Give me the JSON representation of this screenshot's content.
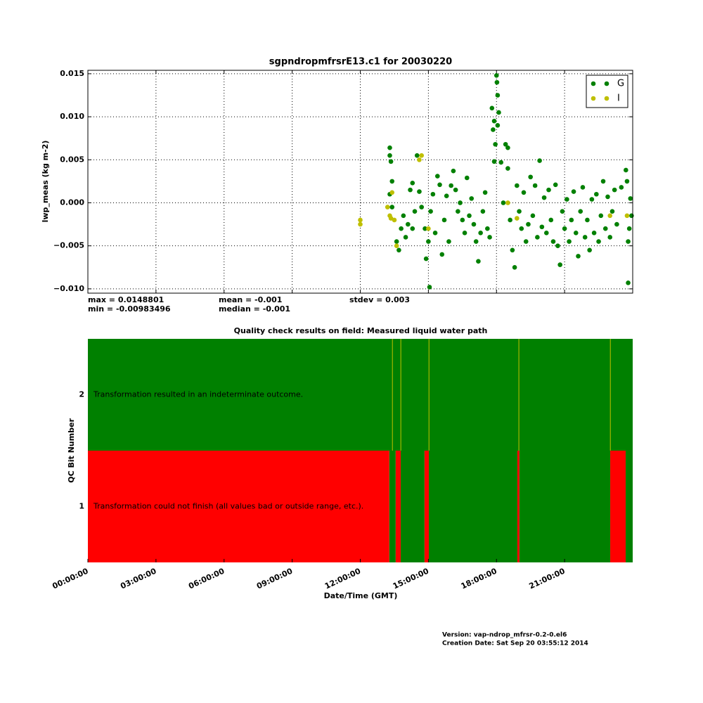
{
  "chart_data": [
    {
      "type": "scatter",
      "title": "sgpndropmfrsrE13.c1 for 20030220",
      "y_label": "lwp_meas (kg m-2)",
      "xlim": [
        0,
        24
      ],
      "xticks": [
        0,
        3,
        6,
        9,
        12,
        15,
        18,
        21
      ],
      "ylim": [
        -0.0105,
        0.0154
      ],
      "yticks": [
        {
          "value": -0.01,
          "label": "−0.010"
        },
        {
          "value": -0.005,
          "label": "−0.005"
        },
        {
          "value": 0,
          "label": "0.000"
        },
        {
          "value": 0.005,
          "label": "0.005"
        },
        {
          "value": 0.01,
          "label": "0.010"
        },
        {
          "value": 0.015,
          "label": "0.015"
        }
      ],
      "grid": true,
      "legend": "upper right",
      "series": [
        {
          "name": "G",
          "color": "#008000",
          "x": [
            13.3,
            13.3,
            13.35,
            13.4,
            13.3,
            13.4,
            13.6,
            13.7,
            13.8,
            13.9,
            14.0,
            14.1,
            14.2,
            14.3,
            14.3,
            14.4,
            14.5,
            14.6,
            14.7,
            14.85,
            14.9,
            15.0,
            15.05,
            15.1,
            15.2,
            15.3,
            15.4,
            15.5,
            15.6,
            15.7,
            15.8,
            15.9,
            16.0,
            16.1,
            16.2,
            16.3,
            16.4,
            16.5,
            16.6,
            16.7,
            16.8,
            16.9,
            17.0,
            17.1,
            17.2,
            17.3,
            17.4,
            17.5,
            17.6,
            17.7,
            17.8,
            17.85,
            17.9,
            17.95,
            18.0,
            18.02,
            18.05,
            18.1,
            18.05,
            17.9,
            18.2,
            18.3,
            18.4,
            18.5,
            18.5,
            18.6,
            18.7,
            18.8,
            18.9,
            19.0,
            19.1,
            19.2,
            19.3,
            19.4,
            19.5,
            19.6,
            19.7,
            19.8,
            19.9,
            20.0,
            20.1,
            20.2,
            20.3,
            20.4,
            20.5,
            20.6,
            20.7,
            20.8,
            20.9,
            21.0,
            21.1,
            21.2,
            21.3,
            21.4,
            21.5,
            21.6,
            21.7,
            21.8,
            21.9,
            22.0,
            22.1,
            22.2,
            22.3,
            22.4,
            22.5,
            22.6,
            22.7,
            22.8,
            22.9,
            23.0,
            23.1,
            23.2,
            23.3,
            23.5,
            23.7,
            23.75,
            23.8,
            23.8,
            23.85,
            23.9,
            23.95
          ],
          "values": [
            0.0064,
            0.0055,
            0.0048,
            0.0025,
            0.001,
            -0.0005,
            -0.0045,
            -0.0055,
            -0.003,
            -0.0015,
            -0.004,
            -0.0025,
            0.0015,
            0.0023,
            -0.003,
            -0.001,
            0.0055,
            0.0013,
            -0.0005,
            -0.003,
            -0.0065,
            -0.0045,
            -0.0098,
            -0.001,
            0.001,
            -0.0035,
            0.0031,
            0.0021,
            -0.006,
            -0.002,
            0.0008,
            -0.0045,
            0.002,
            0.0037,
            0.0015,
            -0.001,
            0.0,
            -0.002,
            -0.0035,
            0.0029,
            -0.0015,
            0.0005,
            -0.0025,
            -0.0045,
            -0.0068,
            -0.0035,
            -0.001,
            0.0012,
            -0.003,
            -0.004,
            0.011,
            0.0085,
            0.0095,
            0.0068,
            0.0148,
            0.014,
            0.0125,
            0.0105,
            0.009,
            0.0048,
            0.0047,
            0.0,
            0.0068,
            0.0064,
            0.004,
            -0.002,
            -0.0055,
            -0.0075,
            0.002,
            -0.001,
            -0.003,
            0.0012,
            -0.0045,
            -0.0025,
            0.003,
            -0.0015,
            0.002,
            -0.004,
            0.0049,
            -0.0028,
            0.0006,
            -0.0035,
            0.0015,
            -0.002,
            -0.0045,
            0.0021,
            -0.005,
            -0.0072,
            -0.001,
            -0.003,
            0.0004,
            -0.0045,
            -0.002,
            0.0013,
            -0.0035,
            -0.0062,
            -0.001,
            0.0018,
            -0.004,
            -0.002,
            -0.0055,
            0.0004,
            -0.0035,
            0.001,
            -0.0045,
            -0.0015,
            0.0025,
            -0.003,
            0.0007,
            -0.004,
            -0.001,
            0.0015,
            -0.0025,
            0.0018,
            0.0038,
            0.0025,
            -0.0045,
            -0.0093,
            -0.003,
            0.0005,
            -0.0015
          ]
        },
        {
          "name": "I",
          "color": "#bfbf00",
          "x": [
            12.0,
            12.0,
            13.2,
            13.3,
            13.35,
            13.4,
            13.5,
            13.6,
            14.6,
            14.7,
            15.0,
            18.5,
            18.9,
            23.0,
            23.75
          ],
          "values": [
            -0.002,
            -0.0025,
            -0.0005,
            -0.0015,
            -0.0018,
            0.0012,
            -0.002,
            -0.005,
            0.005,
            0.0055,
            -0.003,
            0.0,
            -0.0018,
            -0.0015,
            -0.0015
          ]
        }
      ],
      "stats": [
        "max = 0.0148801",
        "min = -0.00983496",
        "mean = -0.001",
        "median = -0.001",
        "stdev = 0.003"
      ]
    },
    {
      "type": "timeline",
      "title": "Quality check results on field: Measured liquid water path",
      "x_label": "Date/Time (GMT)",
      "y_label": "QC Bit Number",
      "xlim": [
        0,
        24
      ],
      "xticks": [
        {
          "value": 0,
          "label": "00:00:00"
        },
        {
          "value": 3,
          "label": "03:00:00"
        },
        {
          "value": 6,
          "label": "06:00:00"
        },
        {
          "value": 9,
          "label": "09:00:00"
        },
        {
          "value": 12,
          "label": "12:00:00"
        },
        {
          "value": 15,
          "label": "15:00:00"
        },
        {
          "value": 18,
          "label": "18:00:00"
        },
        {
          "value": 21,
          "label": "21:00:00"
        }
      ],
      "rows": [
        {
          "label": "1",
          "text": "Transformation could not finish (all values bad or outside range, etc.).",
          "segments": [
            {
              "start": 0,
              "end": 13.28,
              "color": "#ff0000"
            },
            {
              "start": 13.28,
              "end": 13.56,
              "color": "#008000"
            },
            {
              "start": 13.56,
              "end": 13.78,
              "color": "#ff0000"
            },
            {
              "start": 13.78,
              "end": 14.83,
              "color": "#008000"
            },
            {
              "start": 14.83,
              "end": 15.02,
              "color": "#ff0000"
            },
            {
              "start": 15.02,
              "end": 18.92,
              "color": "#008000"
            },
            {
              "start": 18.92,
              "end": 19.01,
              "color": "#ff0000"
            },
            {
              "start": 19.01,
              "end": 23.01,
              "color": "#008000"
            },
            {
              "start": 23.01,
              "end": 23.69,
              "color": "#ff0000"
            },
            {
              "start": 23.69,
              "end": 24,
              "color": "#008000"
            }
          ]
        },
        {
          "label": "2",
          "text": "Transformation resulted in an indeterminate outcome.",
          "segments": [
            {
              "start": 0,
              "end": 24,
              "color": "#008000"
            },
            {
              "start": 13.4,
              "end": 13.43,
              "color": "#bfbf00"
            },
            {
              "start": 13.77,
              "end": 13.8,
              "color": "#bfbf00"
            },
            {
              "start": 15.01,
              "end": 15.04,
              "color": "#bfbf00"
            },
            {
              "start": 18.97,
              "end": 19.0,
              "color": "#bfbf00"
            },
            {
              "start": 23.0,
              "end": 23.03,
              "color": "#bfbf00"
            }
          ]
        }
      ]
    },
    {
      "version": "Version: vap-ndrop_mfrsr-0.2-0.el6",
      "created": "Creation Date: Sat Sep 20 03:55:12 2014"
    }
  ]
}
